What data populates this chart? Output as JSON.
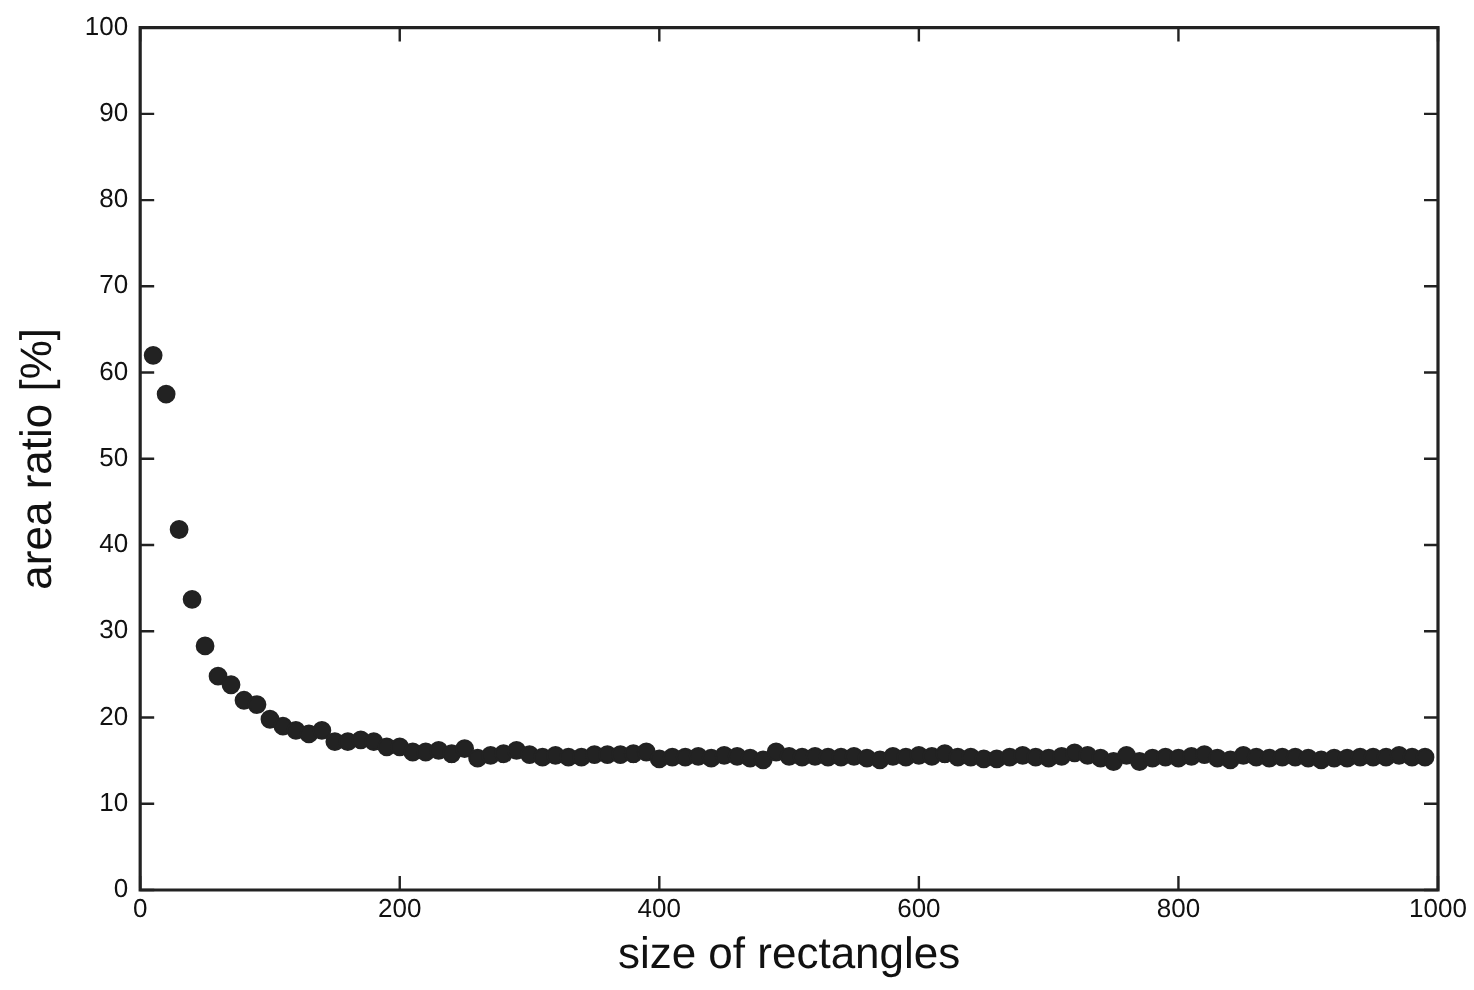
{
  "chart_data": {
    "type": "scatter",
    "xlabel": "size of rectangles",
    "ylabel": "area ratio [%]",
    "marker": "circle",
    "grid": false,
    "legend": false,
    "xlim": [
      0,
      1000
    ],
    "xticks": [
      0,
      200,
      400,
      600,
      800,
      1000
    ],
    "ylim": [
      0,
      100
    ],
    "yticks": [
      0,
      10,
      20,
      30,
      40,
      50,
      60,
      70,
      80,
      90,
      100
    ],
    "series": [
      {
        "color": "#222222",
        "x": [
          10,
          20,
          30,
          40,
          50,
          60,
          70,
          80,
          90,
          100,
          110,
          120,
          130,
          140,
          150,
          160,
          170,
          180,
          190,
          200,
          210,
          220,
          230,
          240,
          250,
          260,
          270,
          280,
          290,
          300,
          310,
          320,
          330,
          340,
          350,
          360,
          370,
          380,
          390,
          400,
          410,
          420,
          430,
          440,
          450,
          460,
          470,
          480,
          490,
          500,
          510,
          520,
          530,
          540,
          550,
          560,
          570,
          580,
          590,
          600,
          610,
          620,
          630,
          640,
          650,
          660,
          670,
          680,
          690,
          700,
          710,
          720,
          730,
          740,
          750,
          760,
          770,
          780,
          790,
          800,
          810,
          820,
          830,
          840,
          850,
          860,
          870,
          880,
          890,
          900,
          910,
          920,
          930,
          940,
          950,
          960,
          970,
          980,
          990
        ],
        "values": [
          62,
          57.5,
          41.8,
          33.7,
          28.3,
          24.8,
          23.8,
          22,
          21.5,
          19.8,
          19,
          18.5,
          18.1,
          18.5,
          17.2,
          17.2,
          17.4,
          17.2,
          16.6,
          16.6,
          16,
          16,
          16.2,
          15.8,
          16.4,
          15.3,
          15.6,
          15.8,
          16.2,
          15.7,
          15.4,
          15.6,
          15.4,
          15.4,
          15.7,
          15.7,
          15.7,
          15.8,
          16,
          15.2,
          15.4,
          15.4,
          15.5,
          15.3,
          15.6,
          15.5,
          15.3,
          15.1,
          16,
          15.5,
          15.4,
          15.5,
          15.4,
          15.4,
          15.5,
          15.3,
          15.1,
          15.5,
          15.4,
          15.6,
          15.5,
          15.8,
          15.4,
          15.4,
          15.2,
          15.2,
          15.4,
          15.6,
          15.4,
          15.3,
          15.5,
          15.9,
          15.6,
          15.3,
          14.9,
          15.6,
          14.9,
          15.3,
          15.4,
          15.3,
          15.5,
          15.7,
          15.3,
          15.1,
          15.6,
          15.4,
          15.3,
          15.4,
          15.4,
          15.3,
          15.1,
          15.3,
          15.3,
          15.4,
          15.4,
          15.4,
          15.6,
          15.4,
          15.4
        ]
      }
    ]
  }
}
